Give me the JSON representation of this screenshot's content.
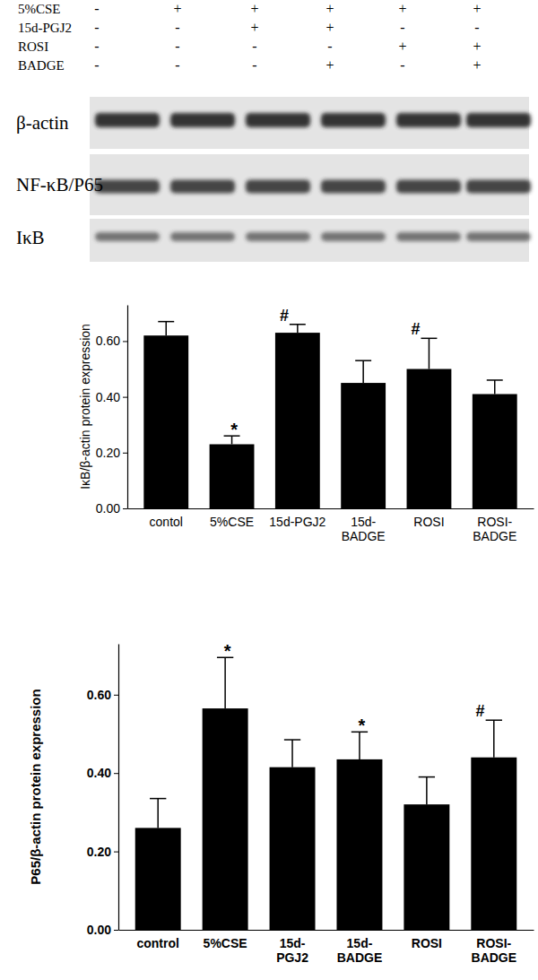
{
  "blot": {
    "treatments": [
      {
        "label": "5%CSE",
        "signs": [
          "-",
          "+",
          "+",
          "+",
          "+",
          "+"
        ]
      },
      {
        "label": "15d-PGJ2",
        "signs": [
          "-",
          "-",
          "+",
          "+",
          "-",
          "-"
        ]
      },
      {
        "label": "ROSI",
        "signs": [
          "-",
          "-",
          "-",
          "-",
          "+",
          "+"
        ]
      },
      {
        "label": "BADGE",
        "signs": [
          "-",
          "-",
          "-",
          "+",
          "-",
          "+"
        ]
      }
    ],
    "bands": [
      "β-actin",
      "NF-κB/P65",
      "IκB"
    ]
  },
  "chart_data": [
    {
      "type": "bar",
      "y_label": "IκB/β-actin protein expression",
      "categories": [
        "contol",
        "5%CSE",
        "15d-PGJ2",
        "15d-BADGE",
        "ROSI",
        "ROSI-BADGE"
      ],
      "values": [
        0.62,
        0.23,
        0.63,
        0.45,
        0.5,
        0.41
      ],
      "errors": [
        0.05,
        0.03,
        0.03,
        0.08,
        0.11,
        0.05
      ],
      "color": "#000000",
      "ylim": [
        0,
        0.73
      ],
      "yticks": [
        {
          "value": 0,
          "label": "0.00"
        },
        {
          "value": 0.2,
          "label": "0.20"
        },
        {
          "value": 0.4,
          "label": "0.40"
        },
        {
          "value": 0.6,
          "label": "0.60"
        }
      ],
      "annotations": [
        {
          "category": "5%CSE",
          "text": "*"
        },
        {
          "category": "15d-PGJ2",
          "text": "#"
        },
        {
          "category": "ROSI",
          "text": "#"
        }
      ]
    },
    {
      "type": "bar",
      "y_label": "P65/β-actin protein expression",
      "categories": [
        "control",
        "5%CSE",
        "15d-PGJ2",
        "15d-BADGE",
        "ROSI",
        "ROSI-BADGE"
      ],
      "values": [
        0.26,
        0.565,
        0.415,
        0.435,
        0.32,
        0.44
      ],
      "errors": [
        0.075,
        0.13,
        0.07,
        0.07,
        0.07,
        0.095
      ],
      "color": "#000000",
      "ylim": [
        0,
        0.73
      ],
      "yticks": [
        {
          "value": 0,
          "label": "0.00"
        },
        {
          "value": 0.2,
          "label": "0.20"
        },
        {
          "value": 0.4,
          "label": "0.40"
        },
        {
          "value": 0.6,
          "label": "0.60"
        }
      ],
      "annotations": [
        {
          "category": "5%CSE",
          "text": "*"
        },
        {
          "category": "15d-BADGE",
          "text": "*"
        },
        {
          "category": "ROSI-BADGE",
          "text": "#"
        }
      ]
    }
  ]
}
